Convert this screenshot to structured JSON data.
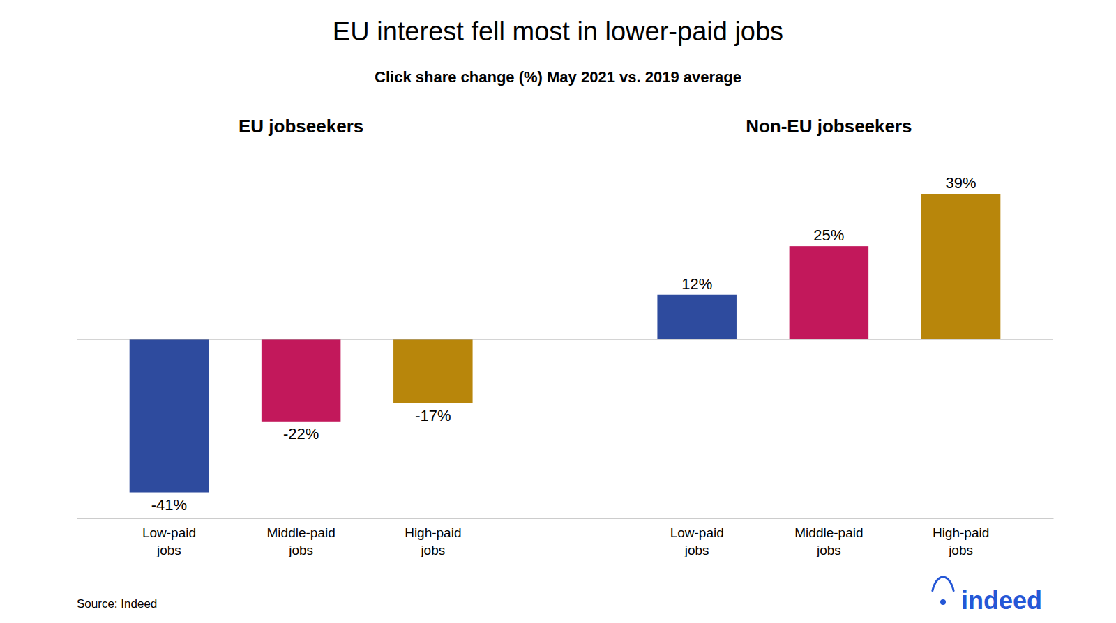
{
  "chart_data": {
    "type": "bar",
    "title": "EU interest fell most in lower-paid jobs",
    "subtitle": "Click share change (%) May 2021 vs. 2019 average",
    "annotations": [
      "EU jobseekers",
      "Non-EU jobseekers"
    ],
    "source": "Source: Indeed",
    "logo": "indeed",
    "categories": [
      "Low-paid\njobs",
      "Middle-paid\njobs",
      "High-paid\njobs",
      null,
      "Low-paid\njobs",
      "Middle-paid\njobs",
      "High-paid\njobs"
    ],
    "values": [
      -41,
      -22,
      -17,
      null,
      12,
      25,
      39
    ],
    "value_labels": [
      "-41%",
      "-22%",
      "-17%",
      null,
      "12%",
      "25%",
      "39%"
    ],
    "colors": [
      "#2E4B9E",
      "#C2185B",
      "#B8860B",
      null,
      "#2E4B9E",
      "#C2185B",
      "#B8860B"
    ],
    "data_labels": true,
    "ylim": [
      -48,
      48
    ],
    "tick_labels": "x"
  }
}
